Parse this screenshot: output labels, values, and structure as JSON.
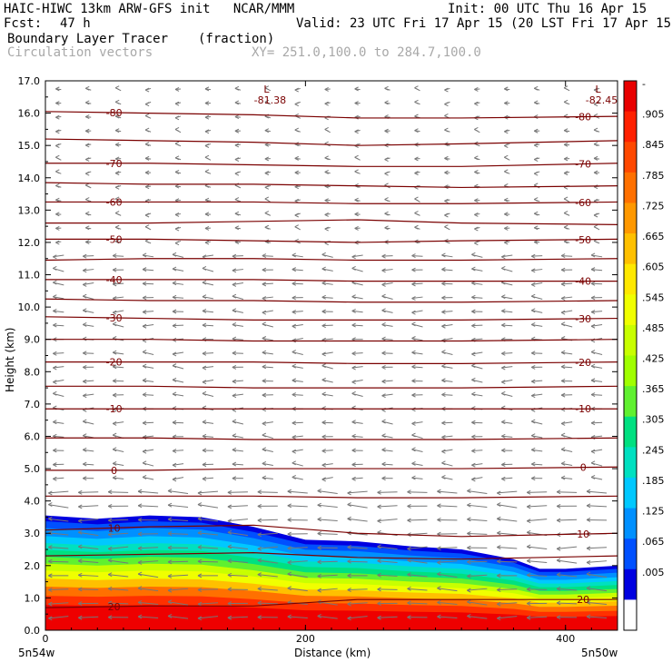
{
  "header": {
    "title_left": "HAIC-HIWC 13km ARW-GFS init   NCAR/MMM",
    "init": "Init: 00 UTC Thu 16 Apr 15",
    "fcst_label": "Fcst:",
    "fcst_value": "47 h",
    "valid": "Valid: 23 UTC Fri 17 Apr 15 (20 LST Fri 17 Apr 15)",
    "field_name": "Boundary Layer Tracer",
    "field_units": "(fraction)",
    "vector_name": "Circulation vectors",
    "xy_range": "XY= 251.0,100.0 to 284.7,100.0"
  },
  "chart_data": {
    "type": "heatmap",
    "ylabel": "Height (km)",
    "xlabel": "Distance (km)",
    "ylim": [
      0,
      17
    ],
    "xlim": [
      0,
      440
    ],
    "yticks": [
      "0.0",
      "1.0",
      "2.0",
      "3.0",
      "4.0",
      "5.0",
      "6.0",
      "7.0",
      "8.0",
      "9.0",
      "10.0",
      "11.0",
      "12.0",
      "13.0",
      "14.0",
      "15.0",
      "16.0",
      "17.0"
    ],
    "xticks": [
      {
        "value": 0,
        "label": "0"
      },
      {
        "value": 200,
        "label": "200"
      },
      {
        "value": 400,
        "label": "400"
      }
    ],
    "x_end_labels": {
      "left": "5n54w",
      "right": "5n50w"
    },
    "tracer_top_km": [
      {
        "x": 0,
        "y": 3.55
      },
      {
        "x": 40,
        "y": 3.45
      },
      {
        "x": 80,
        "y": 3.55
      },
      {
        "x": 120,
        "y": 3.5
      },
      {
        "x": 160,
        "y": 3.2
      },
      {
        "x": 200,
        "y": 2.8
      },
      {
        "x": 240,
        "y": 2.75
      },
      {
        "x": 280,
        "y": 2.6
      },
      {
        "x": 320,
        "y": 2.5
      },
      {
        "x": 360,
        "y": 2.2
      },
      {
        "x": 380,
        "y": 1.9
      },
      {
        "x": 400,
        "y": 1.9
      },
      {
        "x": 440,
        "y": 2.0
      }
    ],
    "colorbar": {
      "ticks": [
        "-",
        ".905",
        ".845",
        ".785",
        ".725",
        ".665",
        ".605",
        ".545",
        ".485",
        ".425",
        ".365",
        ".305",
        ".245",
        ".185",
        ".125",
        ".065",
        ".005"
      ],
      "colors": [
        "#e80000",
        "#ff2000",
        "#ff4800",
        "#ff7000",
        "#ff9800",
        "#ffc000",
        "#ffe800",
        "#f0ff00",
        "#c8ff00",
        "#a0ff00",
        "#60f030",
        "#00e080",
        "#00e0c0",
        "#00c8ff",
        "#0090ff",
        "#0050ff",
        "#0000e0",
        "#ffffff"
      ]
    },
    "temperature_contours": [
      {
        "label": "-80",
        "y": [
          16.05,
          16.0,
          15.95,
          15.85,
          15.85,
          15.9
        ]
      },
      {
        "label": "",
        "y": [
          15.2,
          15.15,
          15.1,
          15.0,
          15.05,
          15.15
        ]
      },
      {
        "label": "-70",
        "y": [
          14.45,
          14.45,
          14.4,
          14.35,
          14.35,
          14.45
        ]
      },
      {
        "label": "",
        "y": [
          13.85,
          13.8,
          13.8,
          13.75,
          13.7,
          13.75
        ]
      },
      {
        "label": "-60",
        "y": [
          13.25,
          13.25,
          13.25,
          13.2,
          13.2,
          13.25
        ]
      },
      {
        "label": "",
        "y": [
          12.6,
          12.6,
          12.65,
          12.7,
          12.6,
          12.55
        ]
      },
      {
        "label": "-50",
        "y": [
          12.1,
          12.1,
          12.05,
          12.0,
          12.05,
          12.1
        ]
      },
      {
        "label": "",
        "y": [
          11.45,
          11.5,
          11.5,
          11.45,
          11.45,
          11.5
        ]
      },
      {
        "label": "-40",
        "y": [
          10.85,
          10.85,
          10.85,
          10.8,
          10.8,
          10.8
        ]
      },
      {
        "label": "",
        "y": [
          10.25,
          10.2,
          10.2,
          10.15,
          10.15,
          10.2
        ]
      },
      {
        "label": "-30",
        "y": [
          9.7,
          9.65,
          9.6,
          9.6,
          9.6,
          9.65
        ]
      },
      {
        "label": "",
        "y": [
          9.0,
          9.0,
          8.95,
          8.95,
          8.95,
          9.0
        ]
      },
      {
        "label": "-20",
        "y": [
          8.3,
          8.3,
          8.3,
          8.25,
          8.25,
          8.3
        ]
      },
      {
        "label": "",
        "y": [
          7.55,
          7.55,
          7.5,
          7.5,
          7.5,
          7.55
        ]
      },
      {
        "label": "-10",
        "y": [
          6.85,
          6.85,
          6.85,
          6.85,
          6.85,
          6.85
        ]
      },
      {
        "label": "",
        "y": [
          5.95,
          5.95,
          5.9,
          5.9,
          5.9,
          5.95
        ]
      },
      {
        "label": "0",
        "y": [
          4.95,
          4.95,
          5.0,
          5.0,
          5.0,
          5.05
        ]
      },
      {
        "label": "",
        "y": [
          4.15,
          4.15,
          4.15,
          4.1,
          4.1,
          4.15
        ]
      },
      {
        "label": "10",
        "y": [
          3.1,
          3.2,
          3.25,
          3.0,
          2.9,
          3.0
        ]
      },
      {
        "label": "",
        "y": [
          2.3,
          2.35,
          2.4,
          2.25,
          2.2,
          2.3
        ]
      },
      {
        "label": "20",
        "y": [
          0.7,
          0.75,
          0.75,
          0.95,
          0.95,
          0.95
        ]
      }
    ],
    "contour_x": [
      0,
      80,
      160,
      240,
      320,
      440
    ],
    "lows": [
      {
        "x": 170,
        "y": 16.75,
        "label": "L",
        "value": "-81.38"
      },
      {
        "x": 425,
        "y": 16.75,
        "label": "L",
        "value": "-82.45"
      }
    ]
  }
}
